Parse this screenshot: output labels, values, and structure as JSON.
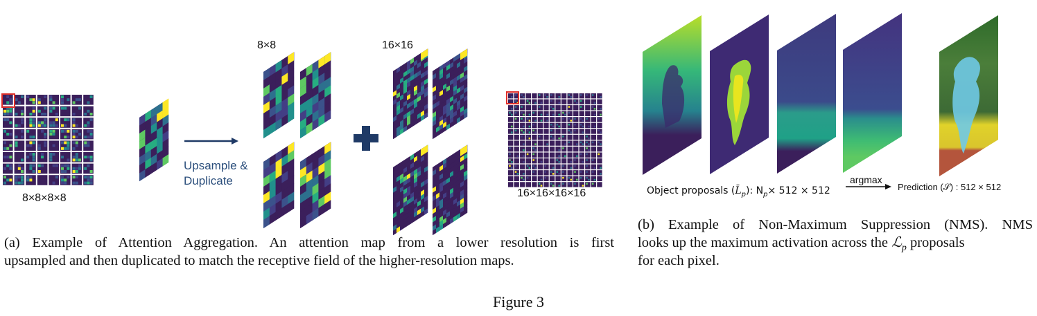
{
  "panel_a": {
    "grid_label": "8×8×8×8",
    "arrow_label_line1": "Upsample &",
    "arrow_label_line2": "Duplicate",
    "label_8x8": "8×8",
    "label_16x16": "16×16",
    "output_label": "16×16×16×16",
    "caption_line1": "(a) Example of Attention Aggregation.  An attention map from a lower resolution is first",
    "caption_line2": "upsampled and then duplicated to match the receptive field of the higher-resolution maps."
  },
  "panel_b": {
    "proposals_label_prefix": "Object proposals (",
    "proposals_symbol": "L̄",
    "proposals_sub": "p",
    "proposals_label_suffix": "): N",
    "proposals_np_sub": "p",
    "proposals_dims": "× 512 × 512",
    "argmax_label": "argmax",
    "prediction_label": "Prediction (𝒮) : 512 × 512",
    "caption_line1": "(b) Example of Non-Maximum Suppression (NMS). NMS",
    "caption_line2": "looks up the maximum activation across the",
    "caption_L": "ℒ",
    "caption_p": "p",
    "caption_line2_end": "proposals",
    "caption_line3": "for each pixel."
  },
  "figure_caption": "Figure 3",
  "colors": {
    "viridis_dark": "#3b1f5b",
    "viridis_blue": "#2d5d8a",
    "viridis_teal": "#21908c",
    "viridis_green": "#5ec962",
    "viridis_yellow": "#fde725",
    "arrow_navy": "#1f3a66",
    "label_blue": "#2c4f7c",
    "highlight_red": "#e0302a"
  }
}
